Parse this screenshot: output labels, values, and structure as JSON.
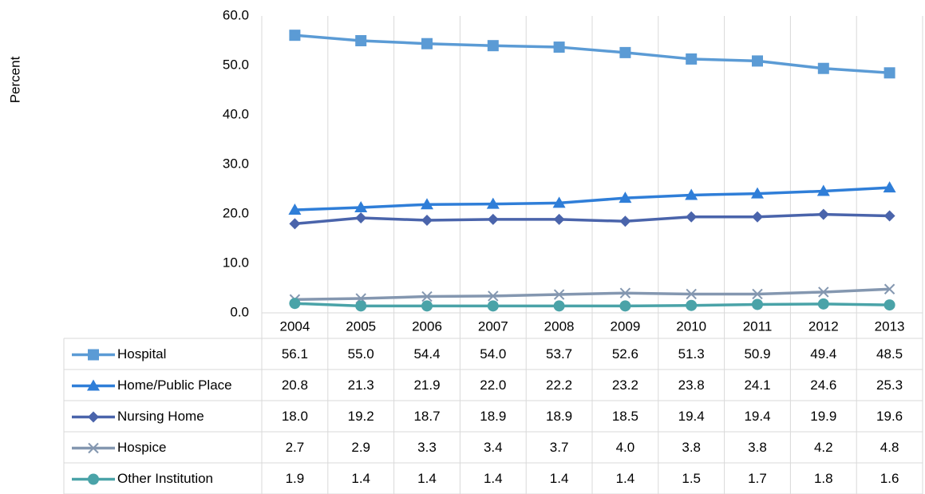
{
  "chart_data": {
    "type": "line",
    "y_label": "Percent",
    "categories": [
      "2004",
      "2005",
      "2006",
      "2007",
      "2008",
      "2009",
      "2010",
      "2011",
      "2012",
      "2013"
    ],
    "ylim": [
      0,
      60
    ],
    "yticks": [
      {
        "value": 0,
        "label": "0.0"
      },
      {
        "value": 10,
        "label": "10.0"
      },
      {
        "value": 20,
        "label": "20.0"
      },
      {
        "value": 30,
        "label": "30.0"
      },
      {
        "value": 40,
        "label": "40.0"
      },
      {
        "value": 50,
        "label": "50.0"
      },
      {
        "value": 60,
        "label": "60.0"
      }
    ],
    "series": [
      {
        "name": "Hospital",
        "color": "#5b9bd5",
        "marker": "square",
        "values": [
          56.1,
          55.0,
          54.4,
          54.0,
          53.7,
          52.6,
          51.3,
          50.9,
          49.4,
          48.5
        ],
        "value_labels": [
          "56.1",
          "55.0",
          "54.4",
          "54.0",
          "53.7",
          "52.6",
          "51.3",
          "50.9",
          "49.4",
          "48.5"
        ]
      },
      {
        "name": "Home/Public Place",
        "color": "#2f7ed8",
        "marker": "triangle",
        "values": [
          20.8,
          21.3,
          21.9,
          22.0,
          22.2,
          23.2,
          23.8,
          24.1,
          24.6,
          25.3
        ],
        "value_labels": [
          "20.8",
          "21.3",
          "21.9",
          "22.0",
          "22.2",
          "23.2",
          "23.8",
          "24.1",
          "24.6",
          "25.3"
        ]
      },
      {
        "name": "Nursing Home",
        "color": "#4a64ab",
        "marker": "diamond",
        "values": [
          18.0,
          19.2,
          18.7,
          18.9,
          18.9,
          18.5,
          19.4,
          19.4,
          19.9,
          19.6
        ],
        "value_labels": [
          "18.0",
          "19.2",
          "18.7",
          "18.9",
          "18.9",
          "18.5",
          "19.4",
          "19.4",
          "19.9",
          "19.6"
        ]
      },
      {
        "name": "Hospice",
        "color": "#8497b0",
        "marker": "x",
        "values": [
          2.7,
          2.9,
          3.3,
          3.4,
          3.7,
          4.0,
          3.8,
          3.8,
          4.2,
          4.8
        ],
        "value_labels": [
          "2.7",
          "2.9",
          "3.3",
          "3.4",
          "3.7",
          "4.0",
          "3.8",
          "3.8",
          "4.2",
          "4.8"
        ]
      },
      {
        "name": "Other Institution",
        "color": "#4aa3a8",
        "marker": "circle",
        "values": [
          1.9,
          1.4,
          1.4,
          1.4,
          1.4,
          1.4,
          1.5,
          1.7,
          1.8,
          1.6
        ],
        "value_labels": [
          "1.9",
          "1.4",
          "1.4",
          "1.4",
          "1.4",
          "1.4",
          "1.5",
          "1.7",
          "1.8",
          "1.6"
        ]
      }
    ]
  }
}
